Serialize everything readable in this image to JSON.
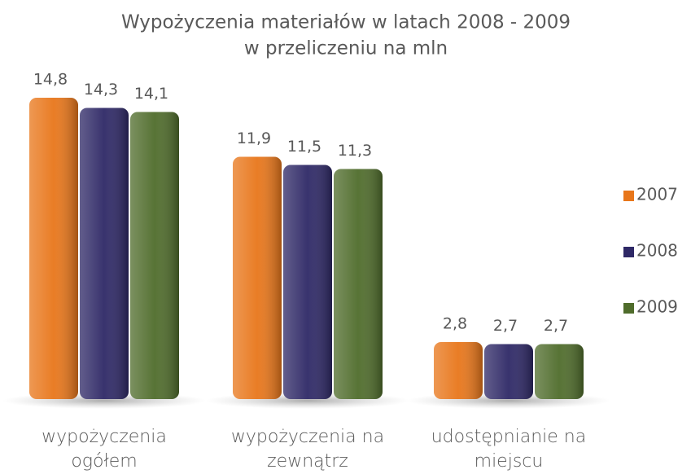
{
  "chart_data": {
    "type": "bar",
    "title": "Wypożyczenia materiałów w latach 2008 - 2009",
    "subtitle": "w przeliczeniu na mln",
    "categories": [
      "wypożyczenia ogółem",
      "wypożyczenia na zewnątrz",
      "udostępnianie na miejscu"
    ],
    "series": [
      {
        "name": "2007",
        "color": "#e8761a",
        "values": [
          14.8,
          11.9,
          2.8
        ],
        "value_labels": [
          "14,8",
          "11,9",
          "2,8"
        ]
      },
      {
        "name": "2008",
        "color": "#2e2866",
        "values": [
          14.3,
          11.5,
          2.7
        ],
        "value_labels": [
          "14,3",
          "11,5",
          "2,7"
        ]
      },
      {
        "name": "2009",
        "color": "#4f6c2b",
        "values": [
          14.1,
          11.3,
          2.7
        ],
        "value_labels": [
          "14,1",
          "11,3",
          "2,7"
        ]
      }
    ],
    "ylim": [
      0,
      15
    ],
    "legend": "right"
  }
}
